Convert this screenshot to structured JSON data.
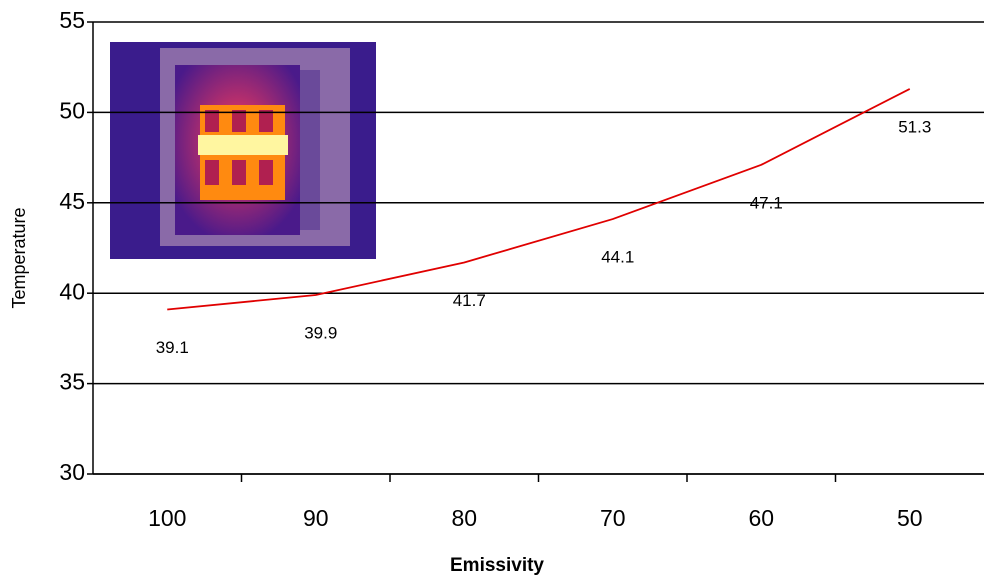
{
  "chart_data": {
    "type": "line",
    "x_label": "Emissivity",
    "y_label": "Temperature",
    "categories": [
      "100",
      "90",
      "80",
      "70",
      "60",
      "50"
    ],
    "values": [
      39.1,
      39.9,
      41.7,
      44.1,
      47.1,
      51.3
    ],
    "color": "#e00000",
    "ylim": [
      30,
      55
    ],
    "yticks": [
      30,
      35,
      40,
      45,
      50,
      55
    ],
    "grid": true
  }
}
